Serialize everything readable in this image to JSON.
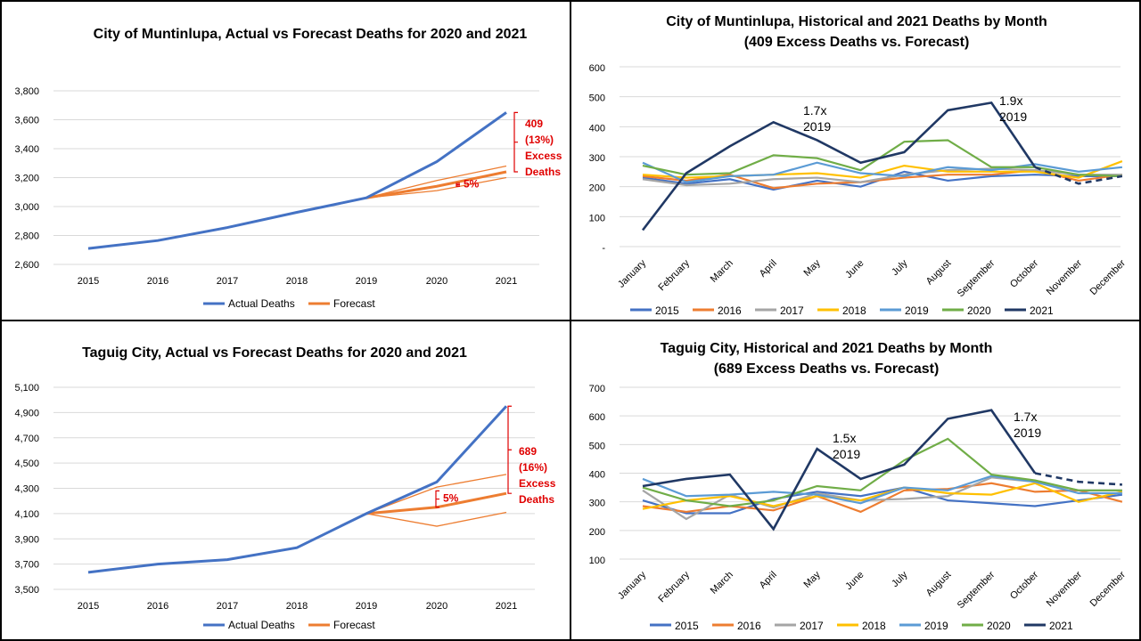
{
  "colors": {
    "actual": "#4472c4",
    "forecast": "#ed7d31",
    "annotation": "#e00000",
    "gridline": "#d9d9d9",
    "y2015": "#4472c4",
    "y2016": "#ed7d31",
    "y2017": "#a5a5a5",
    "y2018": "#ffc000",
    "y2019": "#5b9bd5",
    "y2020": "#70ad47",
    "y2021": "#203864"
  },
  "chart_data": [
    {
      "id": "muntinlupa_annual",
      "type": "line",
      "title": "City of Muntinlupa, Actual vs Forecast Deaths for 2020 and 2021",
      "categories": [
        "2015",
        "2016",
        "2017",
        "2018",
        "2019",
        "2020",
        "2021"
      ],
      "yticks": [
        "2,600",
        "2,800",
        "3,000",
        "3,200",
        "3,400",
        "3,600",
        "3,800"
      ],
      "ylim": [
        2600,
        3800
      ],
      "grid": true,
      "legend": [
        "Actual Deaths",
        "Forecast"
      ],
      "legend_position": "bottom",
      "series": [
        {
          "name": "Actual Deaths",
          "values": [
            2710,
            2765,
            2855,
            2960,
            3060,
            3310,
            3650
          ]
        }
      ],
      "forecast": {
        "main": [
          3060,
          3140,
          3240
        ],
        "upper": [
          3060,
          3180,
          3280
        ],
        "lower": [
          3060,
          3110,
          3200
        ]
      },
      "annotations": {
        "pct_label": "5%",
        "excess_lines": [
          "409",
          "(13%)",
          "Excess",
          "Deaths"
        ]
      }
    },
    {
      "id": "muntinlupa_monthly",
      "type": "line",
      "title_lines": [
        "City of Muntinlupa, Historical and 2021 Deaths by Month",
        "(409 Excess Deaths vs. Forecast)"
      ],
      "categories": [
        "January",
        "February",
        "March",
        "April",
        "May",
        "June",
        "July",
        "August",
        "September",
        "October",
        "November",
        "December"
      ],
      "yticks": [
        "-",
        "100",
        "200",
        "300",
        "400",
        "500",
        "600"
      ],
      "ylim": [
        0,
        600
      ],
      "grid": true,
      "legend_position": "bottom",
      "series": [
        {
          "name": "2015",
          "values": [
            230,
            210,
            225,
            190,
            220,
            200,
            250,
            220,
            235,
            240,
            235,
            235
          ]
        },
        {
          "name": "2016",
          "values": [
            235,
            220,
            240,
            195,
            210,
            215,
            230,
            240,
            240,
            255,
            220,
            240
          ]
        },
        {
          "name": "2017",
          "values": [
            225,
            205,
            210,
            225,
            230,
            215,
            240,
            255,
            260,
            255,
            240,
            240
          ]
        },
        {
          "name": "2018",
          "values": [
            240,
            230,
            235,
            240,
            245,
            230,
            270,
            250,
            250,
            250,
            230,
            285
          ]
        },
        {
          "name": "2019",
          "values": [
            280,
            215,
            235,
            240,
            280,
            245,
            235,
            265,
            255,
            275,
            250,
            265
          ]
        },
        {
          "name": "2020",
          "values": [
            270,
            240,
            245,
            305,
            295,
            255,
            350,
            355,
            265,
            265,
            240,
            235
          ]
        },
        {
          "name": "2021",
          "values": [
            55,
            245,
            335,
            415,
            355,
            280,
            315,
            455,
            480,
            265,
            210,
            235
          ],
          "dashed_from": 9
        }
      ],
      "annotations": [
        {
          "lines": [
            "1.7x",
            "2019"
          ]
        },
        {
          "lines": [
            "1.9x",
            "2019"
          ]
        }
      ]
    },
    {
      "id": "taguig_annual",
      "type": "line",
      "title": "Taguig City, Actual vs Forecast Deaths for 2020 and 2021",
      "categories": [
        "2015",
        "2016",
        "2017",
        "2018",
        "2019",
        "2020",
        "2021"
      ],
      "yticks": [
        "3,500",
        "3,700",
        "3,900",
        "4,100",
        "4,300",
        "4,500",
        "4,700",
        "4,900",
        "5,100"
      ],
      "ylim": [
        3500,
        5100
      ],
      "grid": true,
      "legend": [
        "Actual Deaths",
        "Forecast"
      ],
      "legend_position": "bottom",
      "series": [
        {
          "name": "Actual Deaths",
          "values": [
            3635,
            3700,
            3735,
            3830,
            4100,
            4350,
            4950
          ]
        }
      ],
      "forecast": {
        "main": [
          4100,
          4150,
          4260
        ],
        "upper": [
          4100,
          4310,
          4410
        ],
        "lower": [
          4100,
          4000,
          4110
        ]
      },
      "annotations": {
        "pct_label": "5%",
        "excess_lines": [
          "689",
          "(16%)",
          "Excess",
          "Deaths"
        ]
      }
    },
    {
      "id": "taguig_monthly",
      "type": "line",
      "title_lines": [
        "Taguig City, Historical and 2021 Deaths by Month",
        "(689 Excess Deaths vs. Forecast)"
      ],
      "categories": [
        "January",
        "February",
        "March",
        "April",
        "May",
        "June",
        "July",
        "August",
        "September",
        "October",
        "November",
        "December"
      ],
      "yticks": [
        "100",
        "200",
        "300",
        "400",
        "500",
        "600",
        "700"
      ],
      "ylim": [
        100,
        700
      ],
      "grid": true,
      "legend_position": "bottom",
      "series": [
        {
          "name": "2015",
          "values": [
            305,
            260,
            260,
            310,
            335,
            320,
            350,
            305,
            295,
            285,
            305,
            325
          ]
        },
        {
          "name": "2016",
          "values": [
            285,
            265,
            285,
            270,
            320,
            265,
            340,
            345,
            365,
            335,
            340,
            300
          ]
        },
        {
          "name": "2017",
          "values": [
            340,
            240,
            325,
            280,
            330,
            305,
            310,
            320,
            385,
            370,
            340,
            340
          ]
        },
        {
          "name": "2018",
          "values": [
            275,
            305,
            320,
            285,
            320,
            305,
            350,
            330,
            325,
            365,
            300,
            335
          ]
        },
        {
          "name": "2019",
          "values": [
            380,
            320,
            325,
            335,
            325,
            295,
            350,
            340,
            390,
            370,
            330,
            330
          ]
        },
        {
          "name": "2020",
          "values": [
            350,
            305,
            285,
            305,
            355,
            340,
            445,
            520,
            395,
            375,
            340,
            340
          ]
        },
        {
          "name": "2021",
          "values": [
            355,
            380,
            395,
            205,
            485,
            380,
            430,
            590,
            620,
            400,
            370,
            360
          ],
          "dashed_from": 9
        }
      ],
      "annotations": [
        {
          "lines": [
            "1.5x",
            "2019"
          ]
        },
        {
          "lines": [
            "1.7x",
            "2019"
          ]
        }
      ]
    }
  ]
}
